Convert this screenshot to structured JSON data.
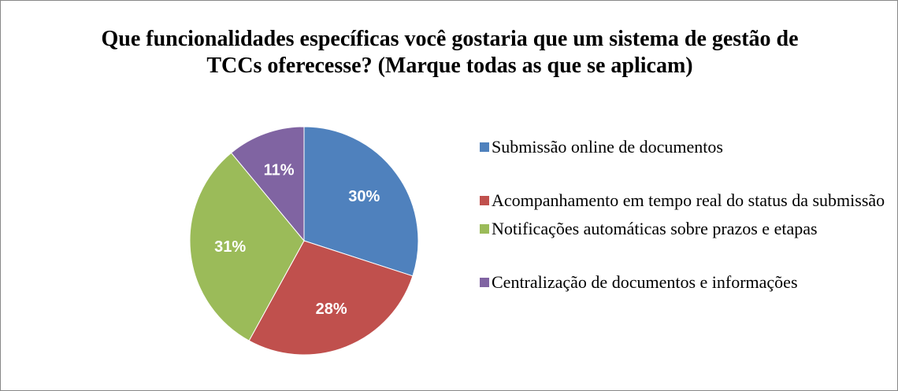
{
  "chart_data": {
    "type": "pie",
    "title": "Que funcionalidades específicas você gostaria que um sistema de gestão de TCCs oferecesse? (Marque todas as que se aplicam)",
    "categories": [
      "Submissão online de documentos",
      "Acompanhamento em tempo real do status da submissão",
      "Notificações automáticas sobre prazos e etapas",
      "Centralização de documentos e informações"
    ],
    "values": [
      30,
      28,
      31,
      11
    ],
    "value_labels": [
      "30%",
      "28%",
      "31%",
      "11%"
    ],
    "colors": [
      "#4f81bd",
      "#c0504d",
      "#9bbb59",
      "#8064a2"
    ],
    "legend": "right"
  }
}
